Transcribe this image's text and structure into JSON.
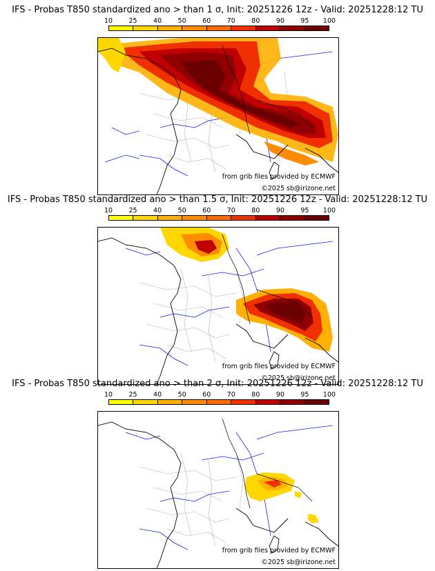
{
  "panels": [
    {
      "title": "IFS - Probas T850  standardized ano > than 1 σ, Init: 20251226 12z - Valid: 20251228:12 TU",
      "threshold_sigma": 1,
      "credit_line_1": "from grib files provided by ECMWF",
      "credit_line_2": "©2025 sb@irizone.net"
    },
    {
      "title": "IFS - Probas T850  standardized ano > than 1.5 σ, Init: 20251226 12z - Valid: 20251228:12 TU",
      "threshold_sigma": 1.5,
      "credit_line_1": "from grib files provided by ECMWF",
      "credit_line_2": "©2025 sb@irizone.net"
    },
    {
      "title": "IFS - Probas T850  standardized ano > than 2 σ, Init: 20251226 12z - Valid: 20251228:12 TU",
      "threshold_sigma": 2,
      "credit_line_1": "from grib files provided by ECMWF",
      "credit_line_2": "©2025 sb@irizone.net"
    }
  ],
  "colorbar": {
    "labels": [
      "10",
      "25",
      "40",
      "50",
      "60",
      "70",
      "80",
      "90",
      "95",
      "100"
    ],
    "colors": [
      "#ffff00",
      "#ffd700",
      "#ffb000",
      "#ff8c00",
      "#ff6a00",
      "#f03000",
      "#c00000",
      "#900000",
      "#6a0000"
    ]
  },
  "colors": {
    "coastline": "#000000",
    "rivers": "#1a1aff",
    "admin_borders": "#b4b4b4"
  }
}
